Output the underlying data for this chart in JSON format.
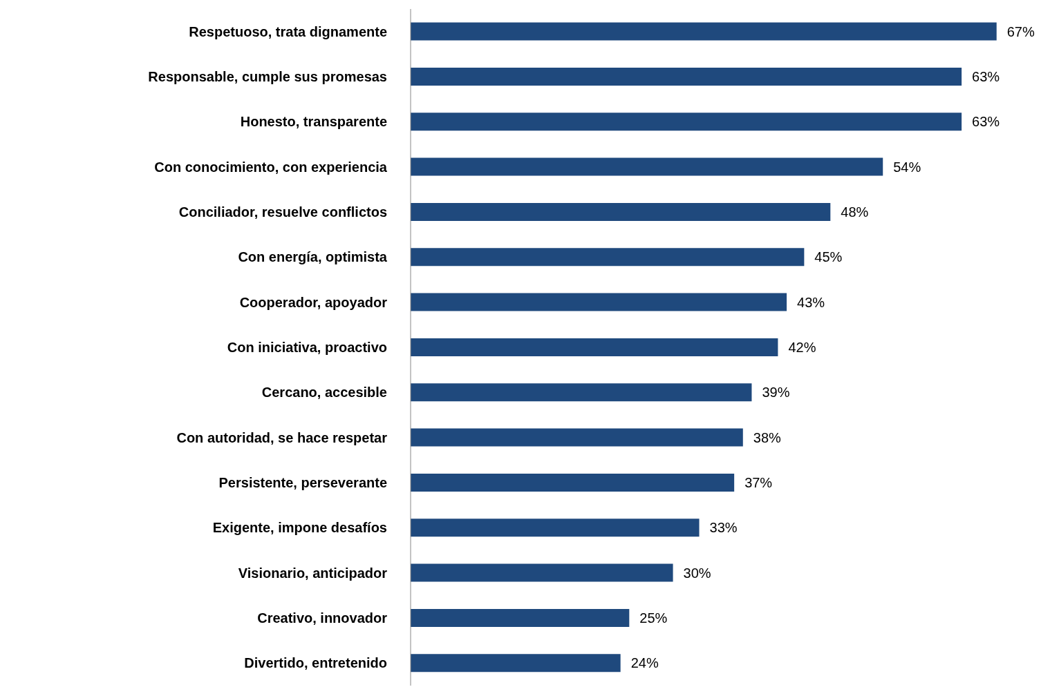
{
  "chart_data": {
    "type": "bar",
    "orientation": "horizontal",
    "categories": [
      "Respetuoso, trata dignamente",
      "Responsable, cumple sus promesas",
      "Honesto, transparente",
      "Con conocimiento, con experiencia",
      "Conciliador, resuelve conflictos",
      "Con energía, optimista",
      "Cooperador, apoyador",
      "Con iniciativa, proactivo",
      "Cercano, accesible",
      "Con autoridad, se hace respetar",
      "Persistente, perseverante",
      "Exigente, impone desafíos",
      "Visionario, anticipador",
      "Creativo, innovador",
      "Divertido, entretenido"
    ],
    "values": [
      67,
      63,
      63,
      54,
      48,
      45,
      43,
      42,
      39,
      38,
      37,
      33,
      30,
      25,
      24
    ],
    "value_labels": [
      "67%",
      "63%",
      "63%",
      "54%",
      "48%",
      "45%",
      "43%",
      "42%",
      "39%",
      "38%",
      "37%",
      "33%",
      "30%",
      "25%",
      "24%"
    ],
    "color": "#1f497d",
    "grid": false,
    "legend": false,
    "tick_labels": "y"
  }
}
